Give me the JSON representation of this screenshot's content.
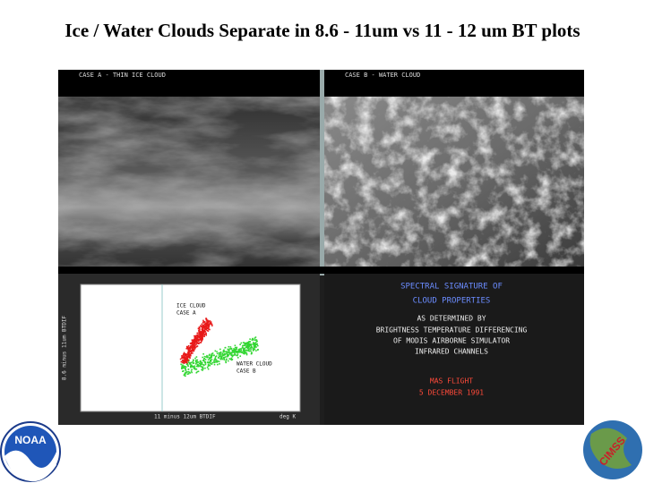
{
  "slide": {
    "title": "Ice / Water Clouds Separate in 8.6 - 11um vs 11 - 12 um BT plots",
    "panels": {
      "case_a": "CASE A - THIN ICE CLOUD",
      "case_b": "CASE B - WATER CLOUD"
    },
    "plot": {
      "ice_label": [
        "ICE CLOUD",
        "CASE A"
      ],
      "water_label": [
        "WATER CLOUD",
        "CASE B"
      ],
      "x_label": "11 minus 12um BTDIF",
      "x_unit": "deg K",
      "y_label": "8.6 minus 11um BTDIF"
    },
    "caption": {
      "heading": [
        "SPECTRAL SIGNATURE OF",
        "CLOUD PROPERTIES"
      ],
      "body": [
        "AS DETERMINED BY",
        "BRIGHTNESS TEMPERATURE DIFFERENCING",
        "OF MODIS AIRBORNE SIMULATOR",
        "INFRARED CHANNELS"
      ],
      "flight": [
        "MAS FLIGHT",
        "5 DECEMBER 1991"
      ]
    },
    "logos": {
      "noaa": "NOAA",
      "cimss": "CIMSS"
    }
  }
}
